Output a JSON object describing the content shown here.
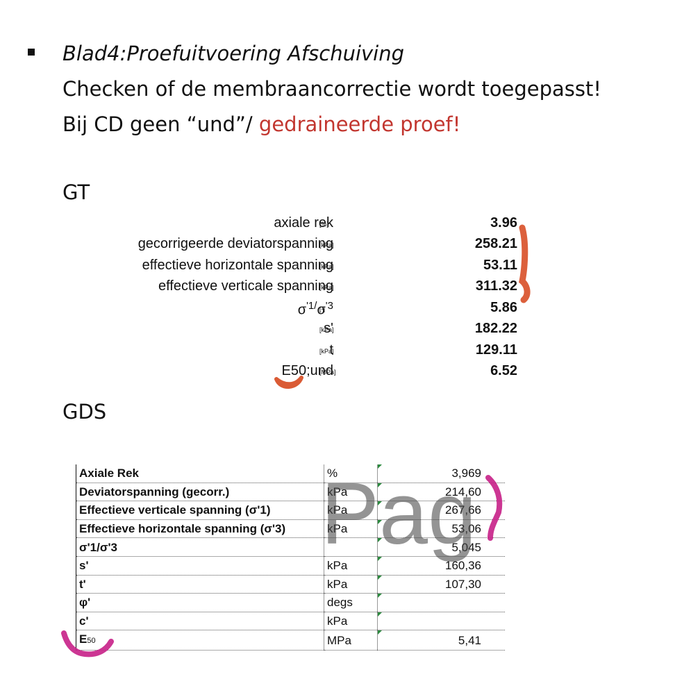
{
  "bullet": {
    "line1": "Blad4:Proefuitvoering Afschuiving",
    "line2": "Checken of de membraancorrectie wordt toegepasst!",
    "line3_prefix": "Bij CD geen “und”/ ",
    "line3_highlight": "gedraineerde proef!",
    "highlight_color": "#c2362f"
  },
  "gt": {
    "label": "GT",
    "rows": [
      {
        "label": "axiale rek",
        "unit": "[%]",
        "value": "3.96"
      },
      {
        "label": "gecorrigeerde deviatorspanning",
        "unit": "[kPa]",
        "value": "258.21"
      },
      {
        "label": "effectieve horizontale spanning",
        "unit": "[kPa]",
        "value": "53.11"
      },
      {
        "label": "effectieve verticale spanning",
        "unit": "[kPa]",
        "value": "311.32"
      },
      {
        "label_a": "σ",
        "label_b": "'1/",
        "label_c": "σ",
        "label_d": "'3",
        "unit": "[-]",
        "value": "5.86"
      },
      {
        "label": "s'",
        "unit": "[kPa]",
        "value": "182.22"
      },
      {
        "label": "t",
        "unit": "[kPa]",
        "value": "129.11"
      },
      {
        "label": "E50;und",
        "unit": "[MPa]",
        "value": "6.52"
      }
    ],
    "annotation_color": "#d9532b"
  },
  "gds": {
    "label": "GDS",
    "rows": [
      {
        "label": "Axiale Rek",
        "unit": "%",
        "value": "3,969"
      },
      {
        "label": "Deviatorspanning (gecorr.)",
        "unit": "kPa",
        "value": "214,60"
      },
      {
        "label": "Effectieve verticale spanning (σ'1)",
        "unit": "kPa",
        "value": "267,66"
      },
      {
        "label": "Effectieve horizontale spanning (σ'3)",
        "unit": "kPa",
        "value": "53,06"
      },
      {
        "label": "σ'1/σ'3",
        "unit": "",
        "value": "5,045"
      },
      {
        "label": "s'",
        "unit": "kPa",
        "value": "160,36"
      },
      {
        "label": "t'",
        "unit": "kPa",
        "value": "107,30"
      },
      {
        "label": "φ'",
        "unit": "degs",
        "value": ""
      },
      {
        "label": "c'",
        "unit": "kPa",
        "value": ""
      },
      {
        "label_main": "E",
        "label_sub": "50",
        "unit": "MPa",
        "value": "5,41"
      }
    ],
    "watermark": "Pag",
    "annotation_color": "#c8258a"
  }
}
